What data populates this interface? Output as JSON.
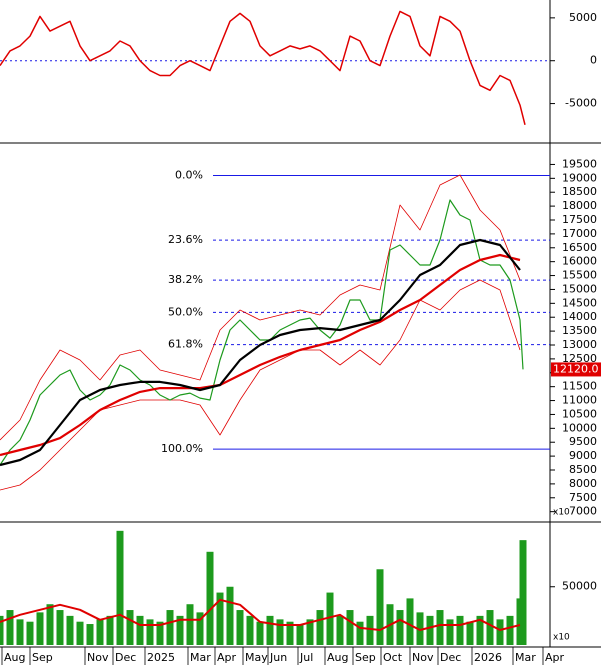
{
  "chart_data": [
    {
      "type": "line",
      "panel": "oscillator",
      "xlim": [
        0,
        55
      ],
      "ylim": [
        -9250,
        6850
      ],
      "yticks": [
        -5000,
        0,
        5000
      ],
      "dashed_zero_line": true,
      "series": [
        {
          "color": "#e00000",
          "x": [
            0,
            1,
            2,
            3,
            4,
            5,
            6,
            7,
            8,
            9,
            10,
            11,
            12,
            13,
            14,
            15,
            16,
            17,
            18,
            19,
            20,
            21,
            22,
            23,
            24,
            25,
            26,
            27,
            28,
            29,
            30,
            31,
            32,
            33,
            34,
            35,
            36,
            37,
            38,
            39,
            40,
            41,
            42,
            43,
            44,
            45,
            46,
            47,
            48,
            49,
            50,
            51,
            52,
            52.5
          ],
          "values": [
            -575,
            1150,
            1725,
            2875,
            5175,
            3450,
            4025,
            4600,
            1725,
            0,
            575,
            1150,
            2300,
            1725,
            0,
            -1150,
            -1725,
            -1725,
            -575,
            0,
            -575,
            -1150,
            1725,
            4600,
            5520,
            4600,
            1725,
            575,
            1150,
            1725,
            1380,
            1725,
            1150,
            0,
            -1150,
            2875,
            2300,
            0,
            -575,
            2875,
            5750,
            5175,
            1725,
            575,
            5175,
            4600,
            3450,
            0,
            -2875,
            -3450,
            -1725,
            -2300,
            -5175,
            -7475
          ]
        }
      ]
    },
    {
      "type": "line",
      "panel": "price",
      "xlim": [
        0,
        55
      ],
      "ylim": [
        6700,
        20200
      ],
      "yticks": [
        7000,
        7500,
        8000,
        8500,
        9000,
        9500,
        10000,
        10500,
        11000,
        11500,
        12000,
        12500,
        13000,
        13500,
        14000,
        14500,
        15000,
        15500,
        16000,
        16500,
        17000,
        17500,
        18000,
        18500,
        19000,
        19500
      ],
      "unit_label": "x10",
      "current_price_label": "12120.0",
      "fibonacci": {
        "color": "#1a1ae6",
        "start_x": 21.3,
        "levels": [
          {
            "value": 19100,
            "label": "0.0%"
          },
          {
            "value": 16775,
            "label": "23.6%"
          },
          {
            "value": 15337,
            "label": "38.2%"
          },
          {
            "value": 14175,
            "label": "50.0%"
          },
          {
            "value": 13013,
            "label": "61.8%"
          },
          {
            "value": 9250,
            "label": "100.0%"
          }
        ]
      },
      "series": [
        {
          "color": "#e00000",
          "width": 0.8,
          "x": [
            0,
            2,
            4,
            6,
            8,
            10,
            12,
            14,
            16,
            18,
            20,
            22,
            24,
            26,
            28,
            30,
            32,
            34,
            36,
            38,
            40,
            42,
            44,
            46,
            48,
            50,
            52
          ],
          "values": [
            9580,
            10300,
            11740,
            12820,
            12460,
            11740,
            12640,
            12820,
            12100,
            11920,
            11740,
            13540,
            14260,
            13900,
            14080,
            14260,
            14080,
            14800,
            15160,
            14980,
            18040,
            17140,
            18760,
            19120,
            17860,
            17140,
            15340
          ]
        },
        {
          "color": "#e00000",
          "width": 0.8,
          "x": [
            0,
            2,
            4,
            6,
            8,
            10,
            12,
            14,
            16,
            18,
            20,
            22,
            24,
            26,
            28,
            30,
            32,
            34,
            36,
            38,
            40,
            42,
            44,
            46,
            48,
            50,
            52
          ],
          "values": [
            7780,
            7960,
            8500,
            9220,
            9940,
            10660,
            10840,
            11020,
            11020,
            11020,
            10840,
            9760,
            11020,
            12100,
            12460,
            12820,
            12820,
            12280,
            12820,
            12280,
            13180,
            14620,
            14260,
            14980,
            15340,
            14980,
            12820
          ]
        },
        {
          "color": "#1d9a1d",
          "width": 1.2,
          "x": [
            0,
            1,
            2,
            3,
            4,
            5,
            6,
            7,
            8,
            9,
            10,
            11,
            12,
            13,
            14,
            15,
            16,
            17,
            18,
            19,
            20,
            21,
            22,
            23,
            24,
            25,
            26,
            27,
            28,
            29,
            30,
            31,
            32,
            33,
            34,
            35,
            36,
            37,
            38,
            39,
            40,
            41,
            42,
            43,
            44,
            45,
            46,
            47,
            48,
            49,
            50,
            51,
            52,
            52.3
          ],
          "values": [
            8680,
            9220,
            9580,
            10300,
            11200,
            11560,
            11920,
            12100,
            11380,
            11020,
            11200,
            11560,
            12280,
            12100,
            11740,
            11560,
            11200,
            11020,
            11200,
            11270,
            11090,
            11020,
            12460,
            13540,
            13900,
            13540,
            13180,
            13180,
            13540,
            13720,
            13900,
            13970,
            13540,
            13250,
            13720,
            14620,
            14620,
            13900,
            13900,
            16420,
            16600,
            16240,
            15880,
            15880,
            16780,
            18220,
            17680,
            17500,
            16060,
            15880,
            15880,
            15340,
            13900,
            12120
          ]
        },
        {
          "color": "#e00000",
          "width": 2.2,
          "x": [
            0,
            2,
            4,
            6,
            8,
            10,
            12,
            14,
            16,
            18,
            20,
            22,
            24,
            26,
            28,
            30,
            32,
            34,
            36,
            38,
            40,
            42,
            44,
            46,
            48,
            50,
            52
          ],
          "values": [
            9040,
            9220,
            9400,
            9650,
            10120,
            10660,
            11020,
            11310,
            11450,
            11450,
            11450,
            11560,
            11920,
            12280,
            12570,
            12820,
            13000,
            13180,
            13540,
            13830,
            14260,
            14620,
            15160,
            15700,
            16060,
            16240,
            16060
          ]
        },
        {
          "color": "#000000",
          "width": 2.2,
          "x": [
            0,
            2,
            4,
            6,
            8,
            10,
            12,
            14,
            16,
            18,
            20,
            22,
            24,
            26,
            28,
            30,
            32,
            34,
            36,
            38,
            40,
            42,
            44,
            46,
            48,
            50,
            52
          ],
          "values": [
            8680,
            8860,
            9220,
            10120,
            11020,
            11380,
            11560,
            11670,
            11670,
            11560,
            11380,
            11560,
            12460,
            13000,
            13360,
            13540,
            13610,
            13540,
            13720,
            13900,
            14620,
            15520,
            15880,
            16600,
            16780,
            16600,
            15700
          ]
        }
      ]
    },
    {
      "type": "bar",
      "panel": "volume",
      "xlim": [
        0,
        55
      ],
      "ylim": [
        0,
        103000
      ],
      "yticks": [
        50000
      ],
      "unit_label": "x10",
      "color": "#1d9a1d",
      "x": [
        0,
        1,
        2,
        3,
        4,
        5,
        6,
        7,
        8,
        9,
        10,
        11,
        12,
        13,
        14,
        15,
        16,
        17,
        18,
        19,
        20,
        21,
        22,
        23,
        24,
        25,
        26,
        27,
        28,
        29,
        30,
        31,
        32,
        33,
        34,
        35,
        36,
        37,
        38,
        39,
        40,
        41,
        42,
        43,
        44,
        45,
        46,
        47,
        48,
        49,
        50,
        51,
        52,
        52.3
      ],
      "values": [
        25000,
        30000,
        22000,
        20000,
        28000,
        35000,
        30000,
        25000,
        20000,
        18000,
        22000,
        25000,
        98000,
        30000,
        25000,
        22000,
        20000,
        30000,
        25000,
        35000,
        28000,
        80000,
        45000,
        50000,
        30000,
        25000,
        20000,
        25000,
        22000,
        20000,
        18000,
        22000,
        30000,
        45000,
        25000,
        30000,
        20000,
        25000,
        65000,
        35000,
        30000,
        40000,
        28000,
        25000,
        30000,
        22000,
        25000,
        20000,
        25000,
        30000,
        22000,
        25000,
        40000,
        90000
      ],
      "average": {
        "color": "#e00000",
        "x": [
          0,
          2,
          4,
          6,
          8,
          10,
          12,
          14,
          16,
          18,
          20,
          22,
          24,
          26,
          28,
          30,
          32,
          34,
          36,
          38,
          40,
          42,
          44,
          46,
          48,
          50,
          52
        ],
        "values": [
          19800,
          25900,
          30200,
          34500,
          30200,
          21600,
          25900,
          17200,
          17200,
          21600,
          21600,
          38800,
          34500,
          19800,
          17200,
          17200,
          21600,
          25900,
          14700,
          12900,
          21600,
          12900,
          17200,
          17200,
          21600,
          12900,
          17200
        ]
      },
      "xticks": [
        {
          "value": 0.2,
          "label": "Aug"
        },
        {
          "value": 3,
          "label": "Sep"
        },
        {
          "value": 8.5,
          "label": "Nov"
        },
        {
          "value": 11.3,
          "label": "Dec"
        },
        {
          "value": 14.5,
          "label": "2025"
        },
        {
          "value": 18.8,
          "label": "Mar"
        },
        {
          "value": 21.5,
          "label": "Apr"
        },
        {
          "value": 24.3,
          "label": "May"
        },
        {
          "value": 26.8,
          "label": "Jun"
        },
        {
          "value": 29.8,
          "label": "Jul"
        },
        {
          "value": 32.5,
          "label": "Aug"
        },
        {
          "value": 35.3,
          "label": "Sep"
        },
        {
          "value": 38.1,
          "label": "Oct"
        },
        {
          "value": 41,
          "label": "Nov"
        },
        {
          "value": 43.8,
          "label": "Dec"
        },
        {
          "value": 47.2,
          "label": "2026"
        },
        {
          "value": 51.3,
          "label": "Mar"
        },
        {
          "value": 54.3,
          "label": "Apr"
        }
      ]
    }
  ]
}
